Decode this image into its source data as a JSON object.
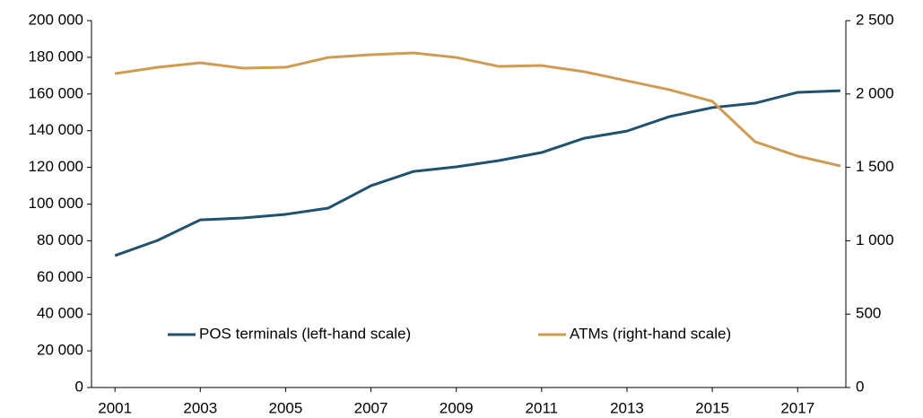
{
  "chart_data": {
    "type": "line",
    "x": [
      2001,
      2002,
      2003,
      2004,
      2005,
      2006,
      2007,
      2008,
      2009,
      2010,
      2011,
      2012,
      2013,
      2014,
      2015,
      2016,
      2017,
      2018
    ],
    "series": [
      {
        "name": "POS terminals (left-hand scale)",
        "color": "#1f5271",
        "values": [
          71900,
          80200,
          91400,
          92400,
          94400,
          97800,
          110000,
          117800,
          120300,
          123700,
          128100,
          135900,
          139800,
          147700,
          152600,
          155000,
          160900,
          161800
        ]
      },
      {
        "name": "ATMs (right-hand scale)",
        "color": "#d09a52",
        "axis": "y2",
        "values": [
          2139,
          2182,
          2213,
          2176,
          2182,
          2249,
          2268,
          2280,
          2249,
          2188,
          2194,
          2152,
          2090,
          2029,
          1950,
          1675,
          1577,
          1510
        ]
      }
    ],
    "xlim": [
      2000.45,
      2018.13
    ],
    "xticks": [
      2001,
      2003,
      2005,
      2007,
      2009,
      2011,
      2013,
      2015,
      2017
    ],
    "ylim": [
      0,
      200000
    ],
    "yticks": [
      0,
      {
        "value": 20000,
        "label": "20 000"
      },
      {
        "value": 40000,
        "label": "40 000"
      },
      {
        "value": 60000,
        "label": "60 000"
      },
      {
        "value": 80000,
        "label": "80 000"
      },
      {
        "value": 100000,
        "label": "100 000"
      },
      {
        "value": 120000,
        "label": "120 000"
      },
      {
        "value": 140000,
        "label": "140 000"
      },
      {
        "value": 160000,
        "label": "160 000"
      },
      {
        "value": 180000,
        "label": "180 000"
      },
      {
        "value": 200000,
        "label": "200 000"
      }
    ],
    "y2lim": [
      0,
      2500
    ],
    "y2ticks": [
      0,
      500,
      {
        "value": 1000,
        "label": "1 000"
      },
      {
        "value": 1500,
        "label": "1 500"
      },
      {
        "value": 2000,
        "label": "2 000"
      },
      {
        "value": 2500,
        "label": "2 500"
      }
    ],
    "grid": false,
    "legend": "lower center"
  }
}
